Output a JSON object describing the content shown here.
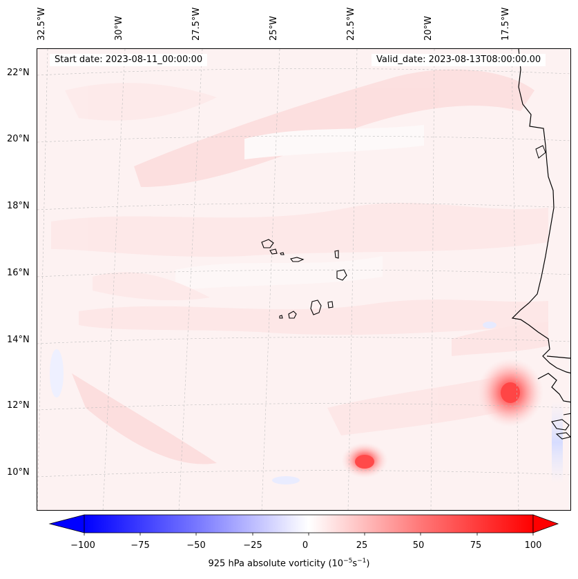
{
  "header": {
    "start_date": "Start date: 2023-08-11_00:00:00",
    "valid_date": "Valid_date: 2023-08-13T08:00:00.00"
  },
  "longitude_labels": [
    "32.5°W",
    "30°W",
    "27.5°W",
    "25°W",
    "22.5°W",
    "20°W",
    "17.5°W"
  ],
  "latitude_labels": [
    "22°N",
    "20°N",
    "18°N",
    "16°N",
    "14°N",
    "12°N",
    "10°N"
  ],
  "colorbar": {
    "ticks": [
      "−100",
      "−75",
      "−50",
      "−25",
      "0",
      "25",
      "50",
      "75",
      "100"
    ],
    "label_main": "925 hPa absolute vorticity (10",
    "label_exp1": "−5",
    "label_mid": "s",
    "label_exp2": "−1",
    "label_end": ")",
    "min_value": -100,
    "max_value": 100,
    "low_color": "#0000ff",
    "high_color": "#ff0000"
  },
  "map_features": {
    "vorticity_maxima": [
      {
        "name": "vortex-near-guinea-bissau",
        "approx_value": 80
      },
      {
        "name": "vortex-south-of-cape-verde",
        "approx_value": 70
      }
    ],
    "coastline_region": "West African coast",
    "islands": "Cape Verde"
  }
}
